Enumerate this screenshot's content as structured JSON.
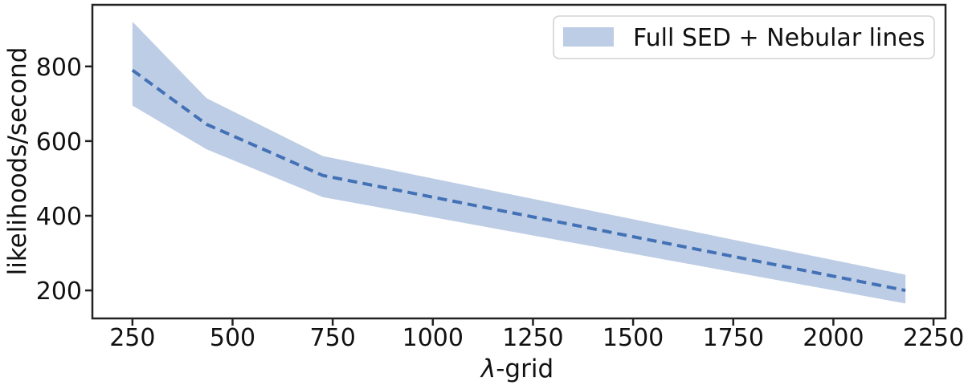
{
  "chart_data": {
    "type": "line",
    "subtype": "dashed-mean-line-with-confidence-band",
    "title": "",
    "xlabel": "λ-grid",
    "xlabel_parts": {
      "italic": "λ",
      "normal": "-grid"
    },
    "ylabel": "likelihoods/second",
    "legend": {
      "position": "upper-right",
      "entries": [
        {
          "label": "Full SED + Nebular lines",
          "swatch": "filled-band"
        }
      ]
    },
    "x": [
      250,
      435,
      725,
      2180
    ],
    "series": [
      {
        "name": "mean-likelihoods-per-second",
        "style": "dashed",
        "values": [
          790,
          645,
          508,
          200
        ]
      },
      {
        "name": "band-upper",
        "style": "band-edge",
        "values": [
          920,
          715,
          560,
          242
        ]
      },
      {
        "name": "band-lower",
        "style": "band-edge",
        "values": [
          695,
          578,
          450,
          165
        ]
      }
    ],
    "xticks": [
      250,
      500,
      750,
      1000,
      1250,
      1500,
      1750,
      2000,
      2250
    ],
    "yticks": [
      200,
      400,
      600,
      800
    ],
    "xlim": [
      150,
      2280
    ],
    "ylim": [
      125,
      965
    ],
    "grid": false,
    "colors": {
      "line": "#4371b5",
      "band": "#4371b5",
      "band_opacity": 0.35,
      "spine": "#222222",
      "text": "#111111",
      "legend_border": "#d3d3d3",
      "legend_fill": "#ffffff",
      "background": "#ffffff"
    }
  }
}
